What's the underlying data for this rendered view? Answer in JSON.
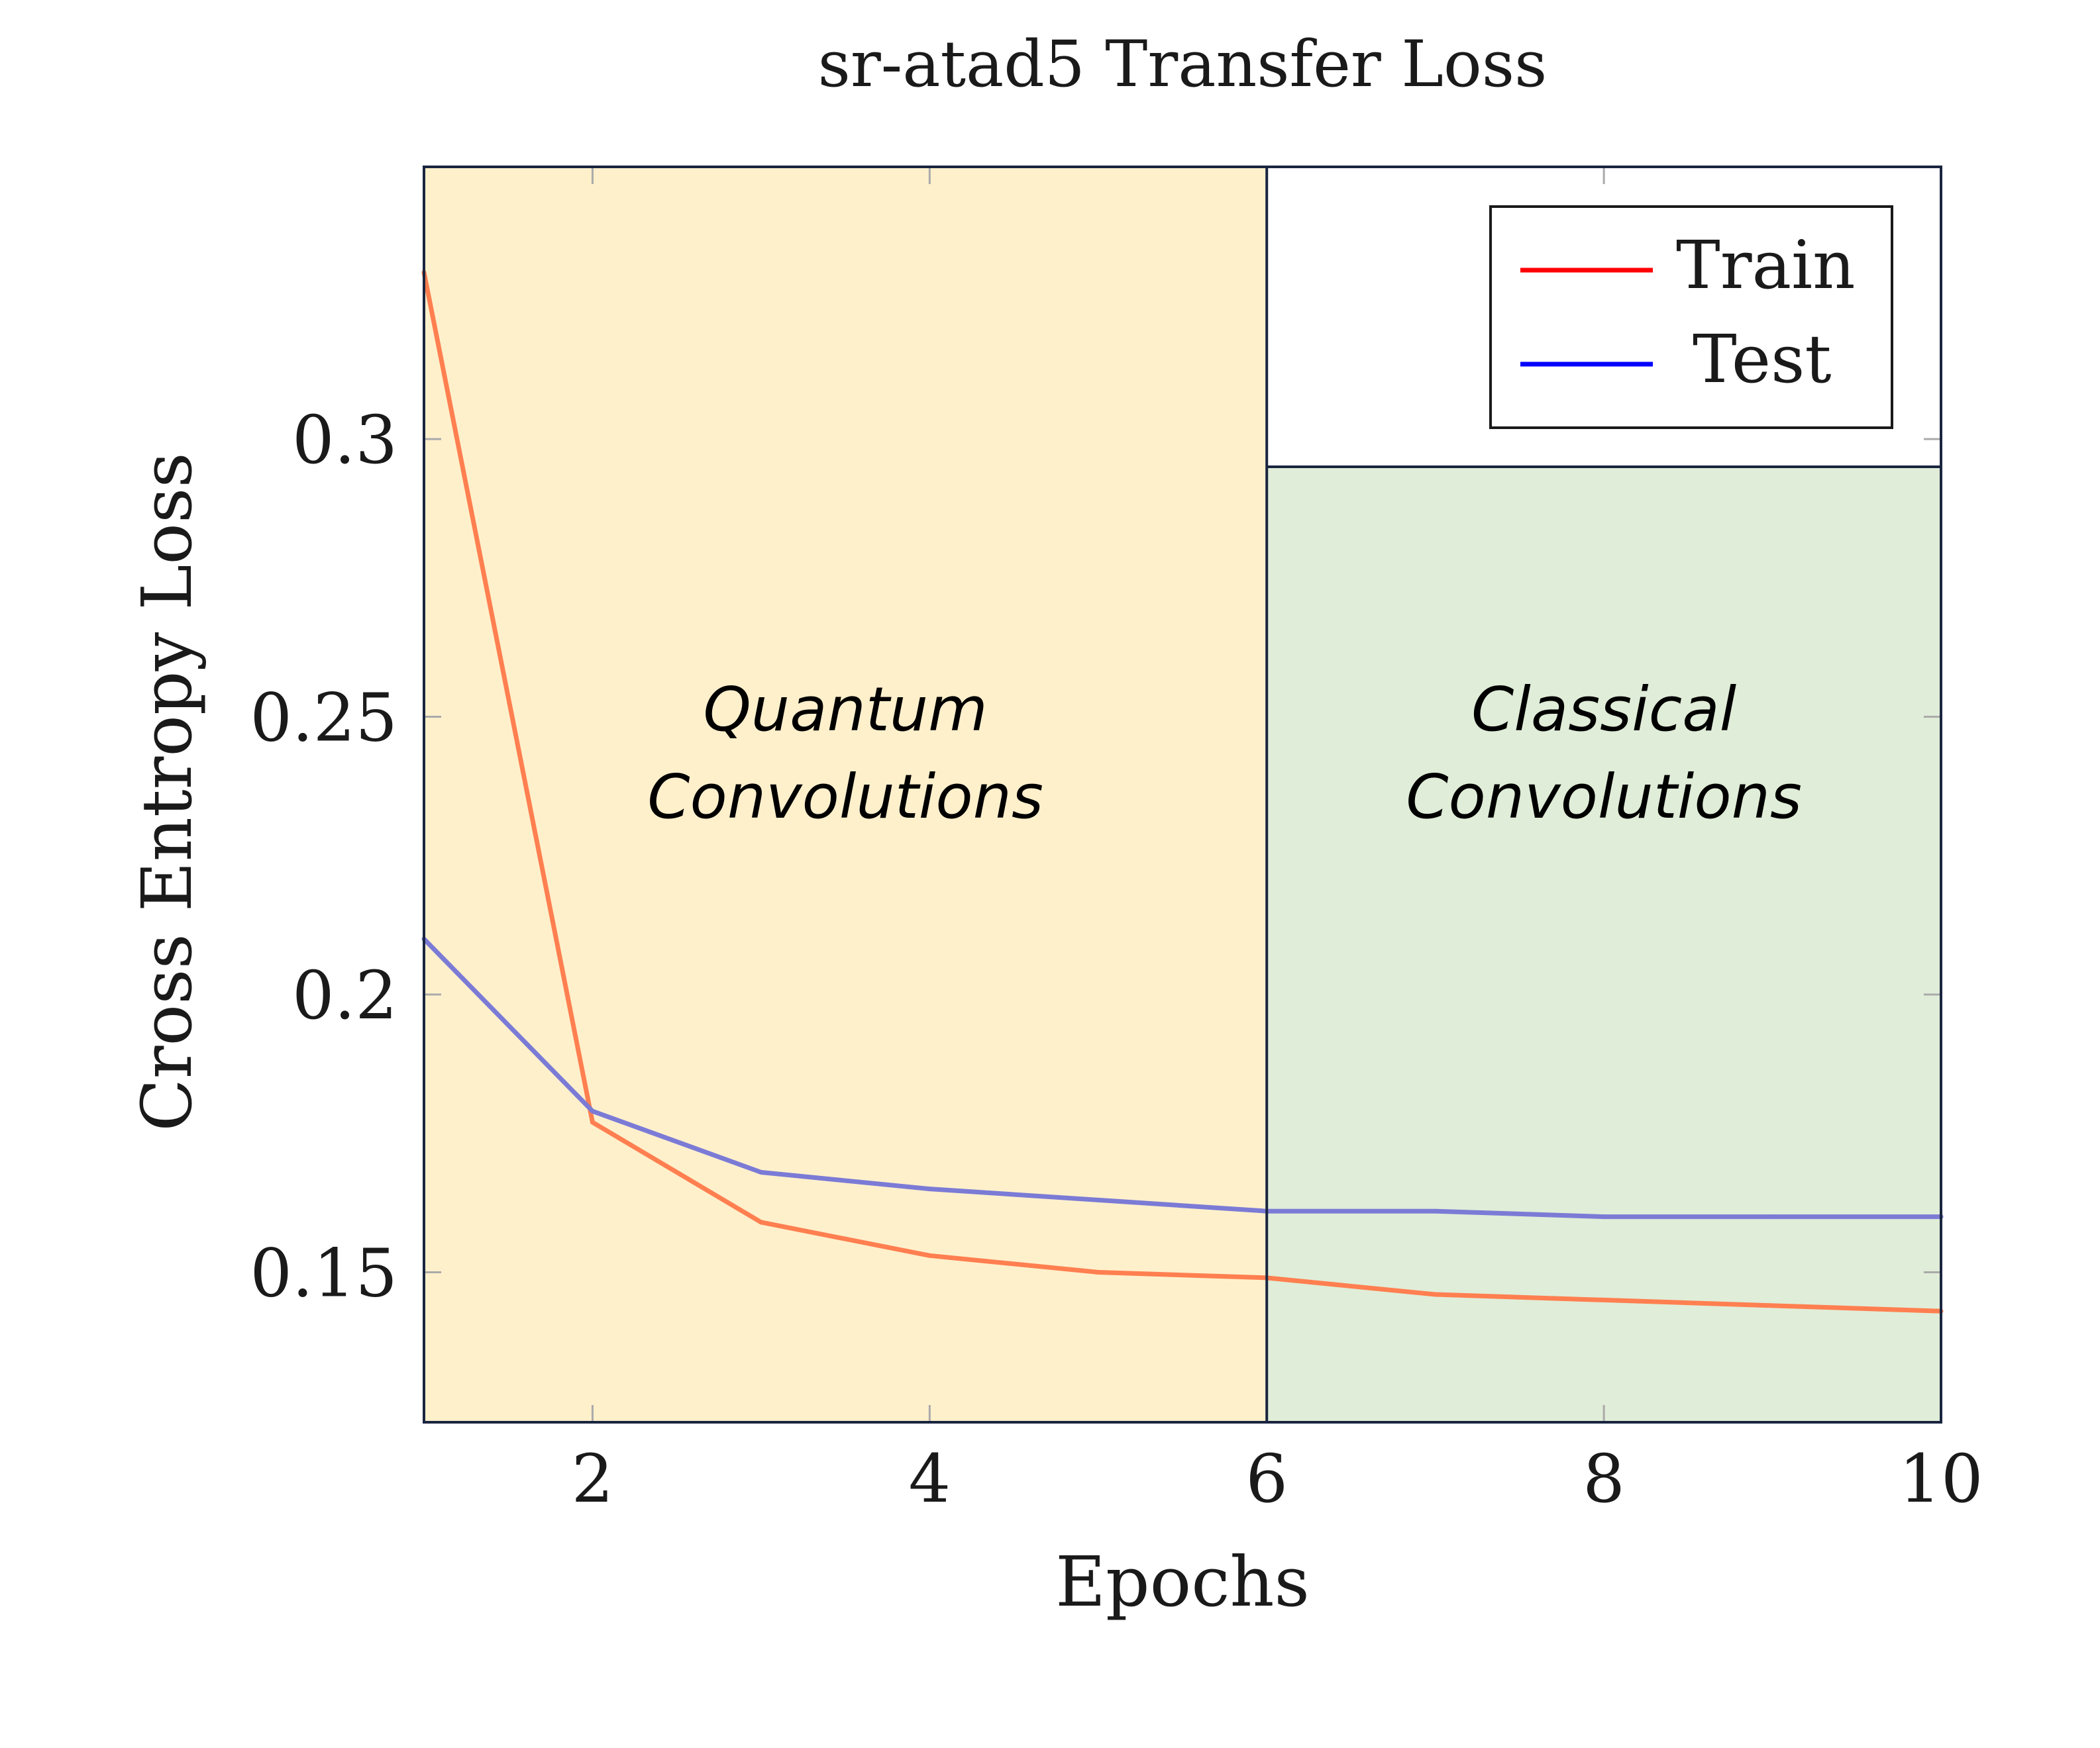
{
  "chart_data": {
    "type": "line",
    "title": "sr-atad5 Transfer Loss",
    "xlabel": "Epochs",
    "ylabel": "Cross Entropy Loss",
    "xlim": [
      1,
      10
    ],
    "ylim": [
      0.123,
      0.349
    ],
    "x_ticks": [
      2,
      4,
      6,
      8,
      10
    ],
    "x_tick_labels": [
      "2",
      "4",
      "6",
      "8",
      "10"
    ],
    "y_ticks": [
      0.15,
      0.2,
      0.25,
      0.3
    ],
    "y_tick_labels": [
      "0.15",
      "0.2",
      "0.25",
      "0.3"
    ],
    "grid": false,
    "legend_position": "top-right",
    "x": [
      1,
      2,
      3,
      4,
      5,
      6,
      7,
      8,
      9,
      10
    ],
    "series": [
      {
        "name": "Train",
        "color": "#ff7f50",
        "legend_color": "#ff0000",
        "values": [
          0.33,
          0.177,
          0.159,
          0.153,
          0.15,
          0.149,
          0.146,
          0.145,
          0.144,
          0.143
        ]
      },
      {
        "name": "Test",
        "color": "#7b7bd6",
        "legend_color": "#0000ff",
        "values": [
          0.21,
          0.179,
          0.168,
          0.165,
          0.163,
          0.161,
          0.161,
          0.16,
          0.16,
          0.16
        ]
      }
    ],
    "regions": [
      {
        "label_lines": [
          "Quantum",
          "Convolutions"
        ],
        "x_range": [
          1,
          6
        ],
        "y_top": 0.349,
        "color": "#fff0cc"
      },
      {
        "label_lines": [
          "Classical",
          "Convolutions"
        ],
        "x_range": [
          6,
          10
        ],
        "y_top": 0.295,
        "color": "#e0edd8"
      }
    ]
  }
}
